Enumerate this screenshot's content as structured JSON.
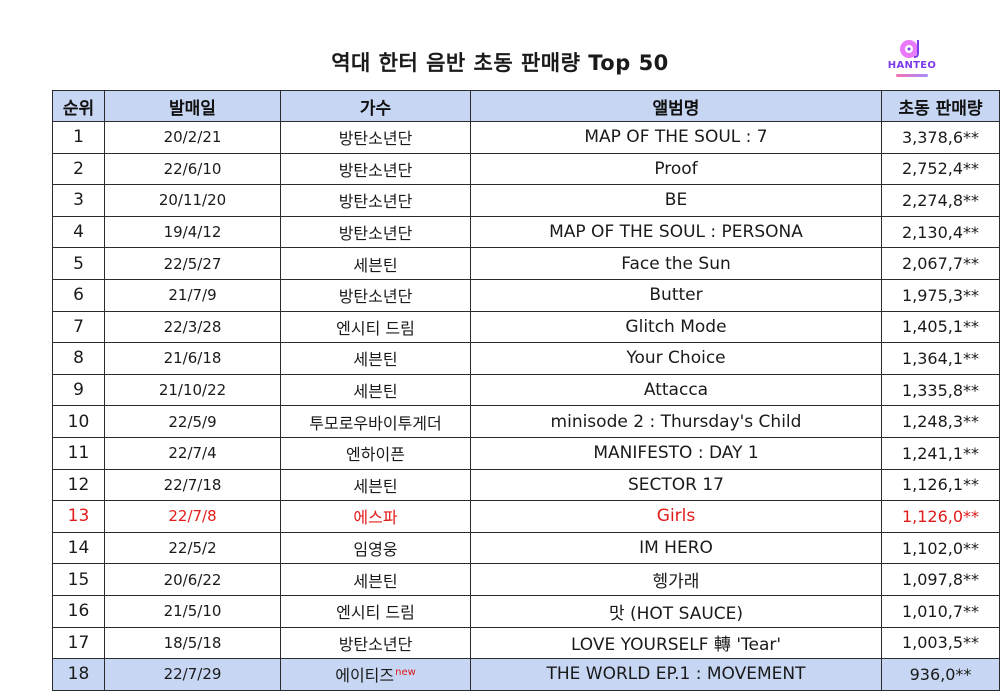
{
  "title": "역대 한터 음반 초동 판매량 Top 50",
  "logo": {
    "text": "HANTEO"
  },
  "colors": {
    "header_bg": "#c7d6f2",
    "highlight_text": "#e21b1b"
  },
  "table": {
    "headers": {
      "rank": "순위",
      "date": "발매일",
      "artist": "가수",
      "album": "앨범명",
      "sales": "초동 판매량"
    },
    "rows": [
      {
        "rank": "1",
        "date": "20/2/21",
        "artist": "방탄소년단",
        "album": "MAP OF THE SOUL : 7",
        "sales": "3,378,6**"
      },
      {
        "rank": "2",
        "date": "22/6/10",
        "artist": "방탄소년단",
        "album": "Proof",
        "sales": "2,752,4**"
      },
      {
        "rank": "3",
        "date": "20/11/20",
        "artist": "방탄소년단",
        "album": "BE",
        "sales": "2,274,8**"
      },
      {
        "rank": "4",
        "date": "19/4/12",
        "artist": "방탄소년단",
        "album": "MAP OF THE SOUL : PERSONA",
        "sales": "2,130,4**"
      },
      {
        "rank": "5",
        "date": "22/5/27",
        "artist": "세븐틴",
        "album": "Face the Sun",
        "sales": "2,067,7**"
      },
      {
        "rank": "6",
        "date": "21/7/9",
        "artist": "방탄소년단",
        "album": "Butter",
        "sales": "1,975,3**"
      },
      {
        "rank": "7",
        "date": "22/3/28",
        "artist": "엔시티 드림",
        "album": "Glitch Mode",
        "sales": "1,405,1**"
      },
      {
        "rank": "8",
        "date": "21/6/18",
        "artist": "세븐틴",
        "album": "Your Choice",
        "sales": "1,364,1**"
      },
      {
        "rank": "9",
        "date": "21/10/22",
        "artist": "세븐틴",
        "album": "Attacca",
        "sales": "1,335,8**"
      },
      {
        "rank": "10",
        "date": "22/5/9",
        "artist": "투모로우바이투게더",
        "album": "minisode 2 : Thursday's Child",
        "sales": "1,248,3**"
      },
      {
        "rank": "11",
        "date": "22/7/4",
        "artist": "엔하이픈",
        "album": "MANIFESTO : DAY 1",
        "sales": "1,241,1**"
      },
      {
        "rank": "12",
        "date": "22/7/18",
        "artist": "세븐틴",
        "album": "SECTOR 17",
        "sales": "1,126,1**"
      },
      {
        "rank": "13",
        "date": "22/7/8",
        "artist": "에스파",
        "album": "Girls",
        "sales": "1,126,0**"
      },
      {
        "rank": "14",
        "date": "22/5/2",
        "artist": "임영웅",
        "album": "IM HERO",
        "sales": "1,102,0**"
      },
      {
        "rank": "15",
        "date": "20/6/22",
        "artist": "세븐틴",
        "album": "헹가래",
        "sales": "1,097,8**"
      },
      {
        "rank": "16",
        "date": "21/5/10",
        "artist": "엔시티 드림",
        "album": "맛 (HOT SAUCE)",
        "sales": "1,010,7**"
      },
      {
        "rank": "17",
        "date": "18/5/18",
        "artist": "방탄소년단",
        "album": "LOVE YOURSELF 轉 'Tear'",
        "sales": "1,003,5**"
      },
      {
        "rank": "18",
        "date": "22/7/29",
        "artist": "에이티즈",
        "artist_badge": "new",
        "album": "THE WORLD EP.1 : MOVEMENT",
        "sales": "936,0**"
      }
    ]
  }
}
